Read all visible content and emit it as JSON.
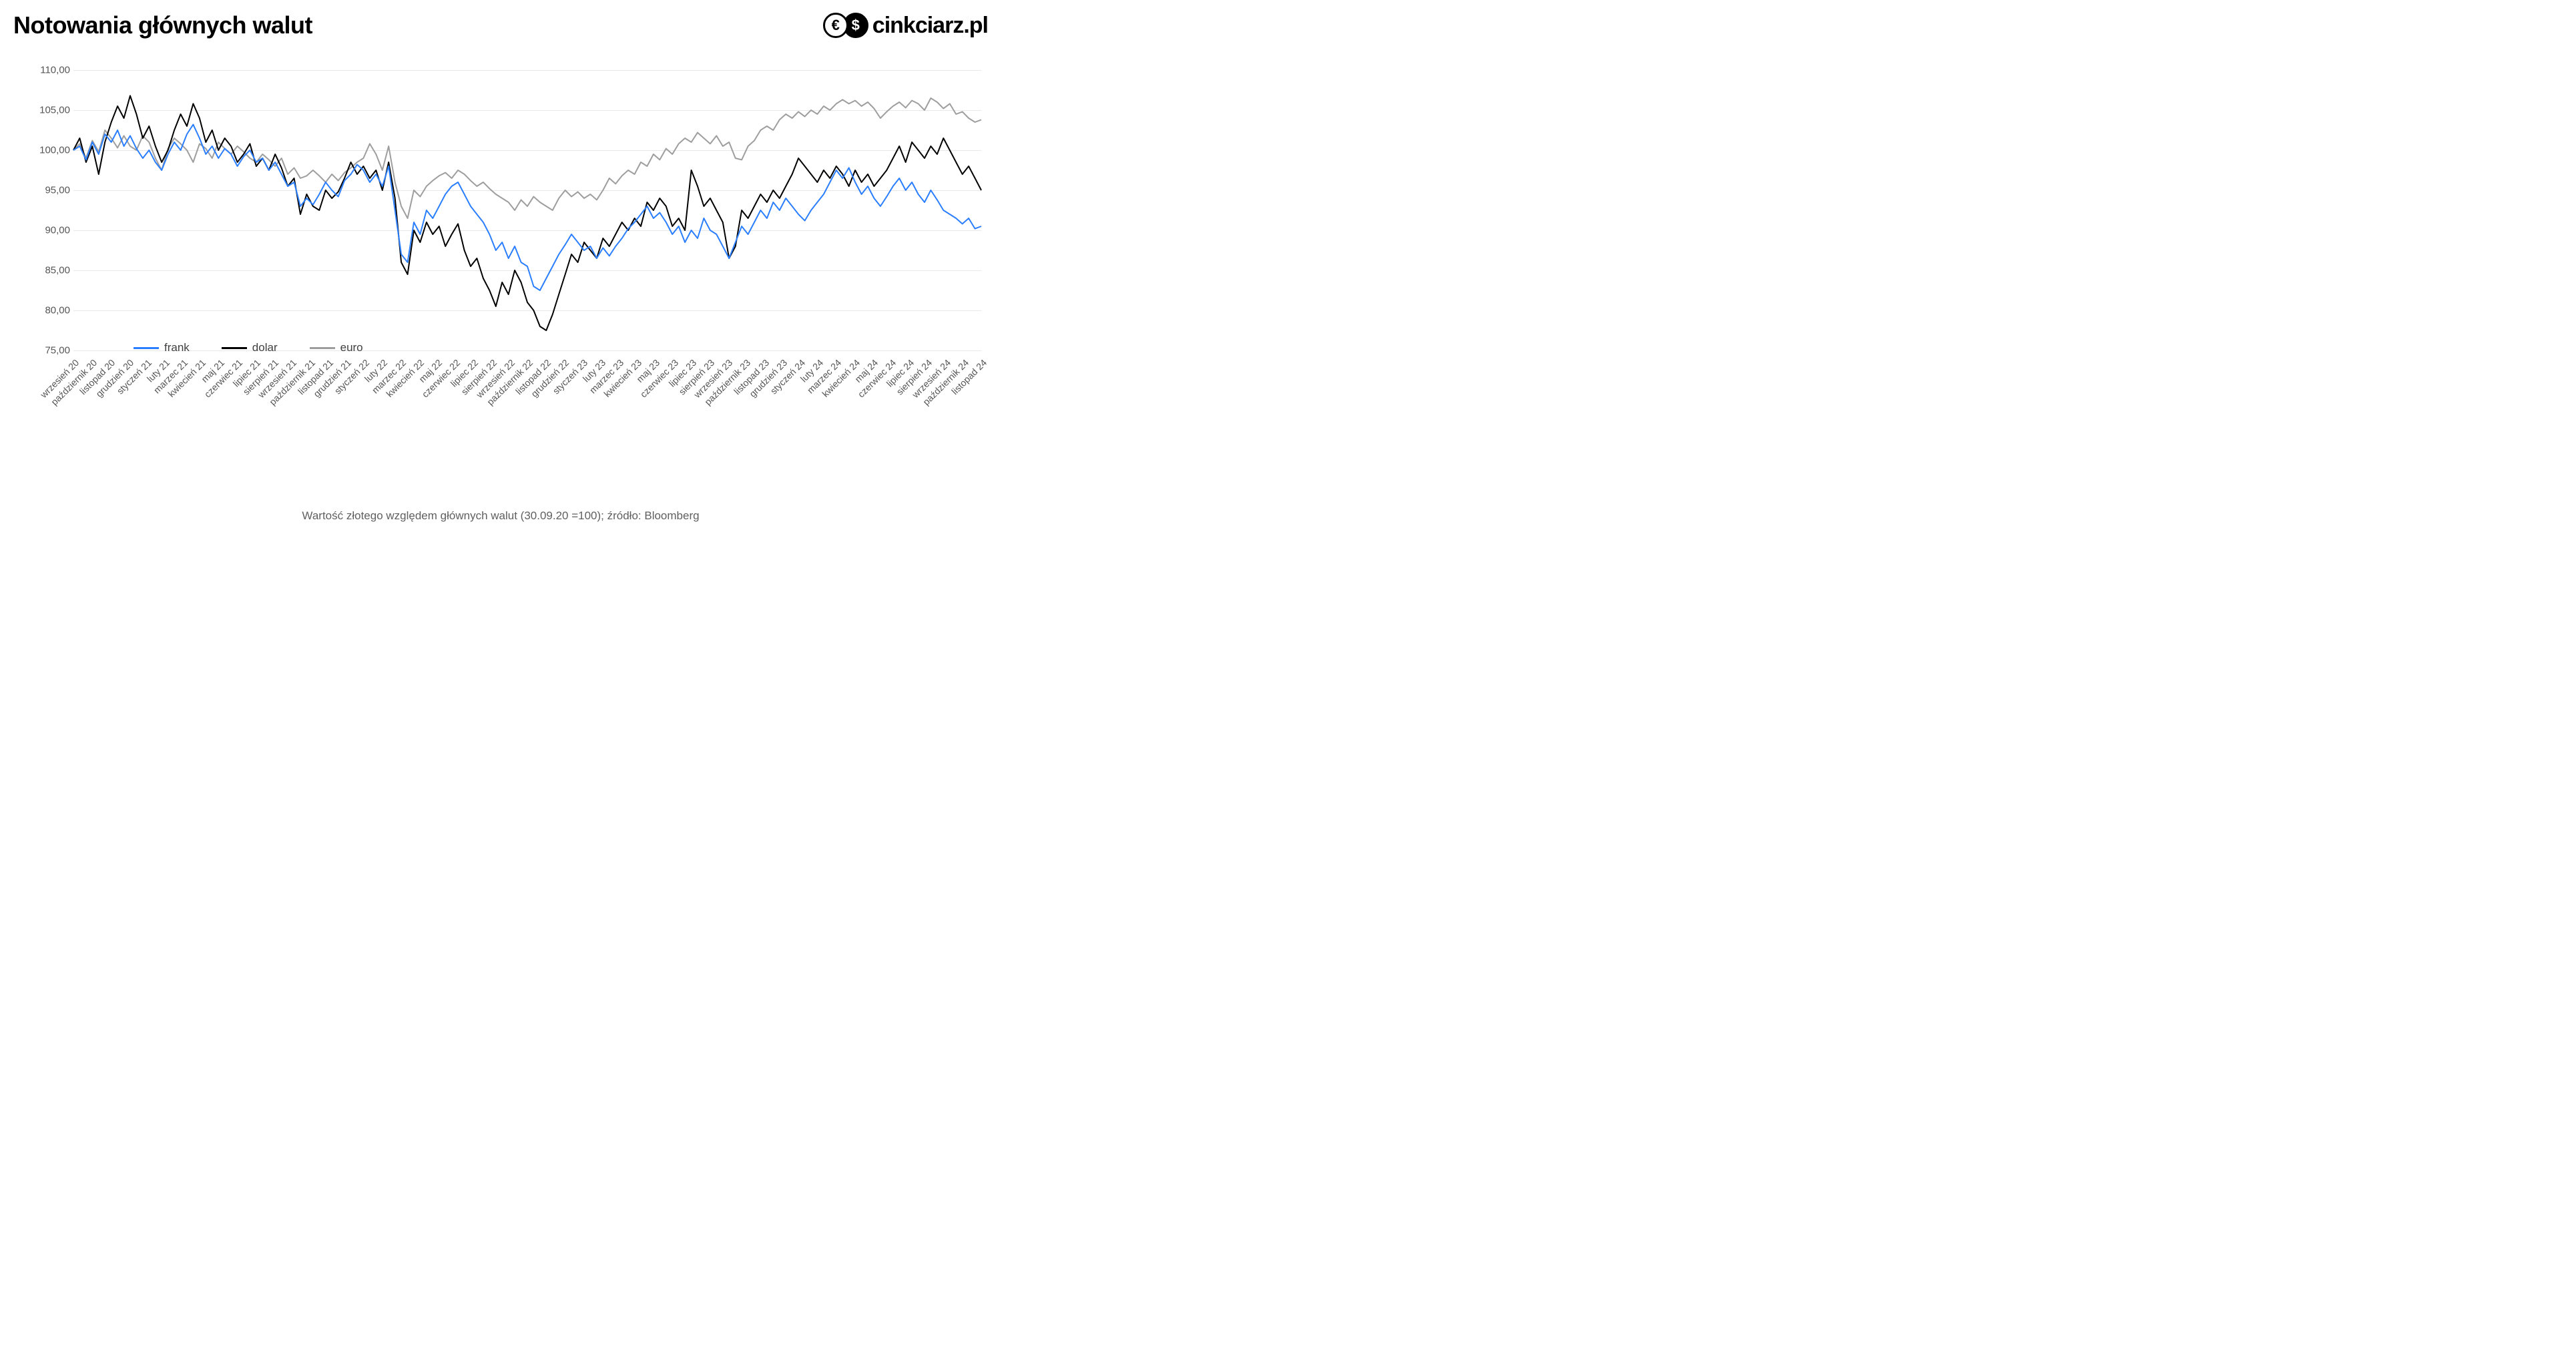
{
  "title": "Notowania głównych walut",
  "logo": {
    "brand_text": "cinkciarz.pl",
    "icon1_glyph": "€",
    "icon2_glyph": "$"
  },
  "caption": "Wartość złotego względem głównych walut (30.09.20 =100); źródło: Bloomberg",
  "chart": {
    "type": "line",
    "background_color": "#ffffff",
    "grid_color": "#e8e8e8",
    "axis_text_color": "#555555",
    "title_fontsize": 36,
    "axis_fontsize": 15,
    "x_label_fontsize": 14,
    "x_label_rotation_deg": -45,
    "line_width": 2,
    "ylim": [
      75,
      110
    ],
    "ytick_step": 5,
    "y_ticks": [
      "75,00",
      "80,00",
      "85,00",
      "90,00",
      "95,00",
      "100,00",
      "105,00",
      "110,00"
    ],
    "x_categories": [
      "wrzesień 20",
      "październik 20",
      "listopad 20",
      "grudzień 20",
      "styczeń 21",
      "luty 21",
      "marzec 21",
      "kwiecień 21",
      "maj 21",
      "czerwiec 21",
      "lipiec 21",
      "sierpień 21",
      "wrzesień 21",
      "październik 21",
      "listopad 21",
      "grudzień 21",
      "styczeń 22",
      "luty 22",
      "marzec 22",
      "kwiecień 22",
      "maj 22",
      "czerwiec 22",
      "lipiec 22",
      "sierpień 22",
      "wrzesień 22",
      "październik 22",
      "listopad 22",
      "grudzień 22",
      "styczeń 23",
      "luty 23",
      "marzec 23",
      "kwiecień 23",
      "maj 23",
      "czerwiec 23",
      "lipiec 23",
      "sierpień 23",
      "wrzesień 23",
      "październik 23",
      "listopad 23",
      "grudzień 23",
      "styczeń 24",
      "luty 24",
      "marzec 24",
      "kwiecień 24",
      "maj 24",
      "czerwiec 24",
      "lipiec 24",
      "sierpień 24",
      "wrzesień 24",
      "październik 24",
      "listopad 24"
    ],
    "legend": {
      "position": "bottom-left-inside",
      "fontsize": 17,
      "items": [
        {
          "label": "frank",
          "color": "#2b7fff"
        },
        {
          "label": "dolar",
          "color": "#000000"
        },
        {
          "label": "euro",
          "color": "#9e9e9e"
        }
      ]
    },
    "series": [
      {
        "name": "euro",
        "color": "#9e9e9e",
        "values": [
          100.0,
          100.8,
          99.0,
          101.2,
          99.8,
          102.5,
          101.5,
          100.3,
          101.8,
          100.5,
          100.0,
          101.8,
          101.0,
          99.0,
          97.5,
          100.2,
          101.5,
          100.8,
          100.0,
          98.5,
          100.8,
          100.2,
          99.0,
          101.0,
          100.2,
          99.5,
          100.5,
          99.8,
          99.0,
          98.5,
          99.5,
          98.8,
          98.0,
          99.0,
          97.0,
          97.8,
          96.5,
          96.8,
          97.5,
          96.8,
          96.0,
          97.0,
          96.2,
          97.2,
          97.8,
          98.5,
          99.0,
          100.8,
          99.5,
          97.5,
          100.5,
          96.0,
          93.0,
          91.5,
          95.0,
          94.2,
          95.5,
          96.2,
          96.8,
          97.2,
          96.5,
          97.5,
          97.0,
          96.2,
          95.5,
          96.0,
          95.2,
          94.5,
          94.0,
          93.5,
          92.5,
          93.8,
          93.0,
          94.2,
          93.5,
          93.0,
          92.5,
          94.0,
          95.0,
          94.2,
          94.8,
          94.0,
          94.5,
          93.8,
          95.0,
          96.5,
          95.8,
          96.8,
          97.5,
          97.0,
          98.5,
          98.0,
          99.5,
          98.8,
          100.2,
          99.5,
          100.8,
          101.5,
          101.0,
          102.2,
          101.5,
          100.8,
          101.8,
          100.5,
          101.0,
          99.0,
          98.8,
          100.5,
          101.2,
          102.5,
          103.0,
          102.5,
          103.8,
          104.5,
          104.0,
          104.8,
          104.2,
          105.0,
          104.5,
          105.5,
          105.0,
          105.8,
          106.3,
          105.8,
          106.2,
          105.5,
          106.0,
          105.2,
          104.0,
          104.8,
          105.5,
          106.0,
          105.3,
          106.2,
          105.8,
          105.0,
          106.5,
          106.0,
          105.2,
          105.8,
          104.5,
          104.8,
          104.0,
          103.5,
          103.8
        ]
      },
      {
        "name": "dolar",
        "color": "#000000",
        "values": [
          100.0,
          101.5,
          98.5,
          100.5,
          97.0,
          101.0,
          103.5,
          105.5,
          104.0,
          106.8,
          104.5,
          101.5,
          103.0,
          100.5,
          98.5,
          100.0,
          102.5,
          104.5,
          103.0,
          105.8,
          104.0,
          101.0,
          102.5,
          100.0,
          101.5,
          100.5,
          98.5,
          99.5,
          100.8,
          98.0,
          99.0,
          97.5,
          99.5,
          97.8,
          95.5,
          96.5,
          92.0,
          94.5,
          93.0,
          92.5,
          95.0,
          94.0,
          94.8,
          96.5,
          98.5,
          97.0,
          98.0,
          96.5,
          97.5,
          95.0,
          98.5,
          94.0,
          86.0,
          84.5,
          90.0,
          88.5,
          91.0,
          89.5,
          90.5,
          88.0,
          89.5,
          90.8,
          87.5,
          85.5,
          86.5,
          84.0,
          82.5,
          80.5,
          83.5,
          82.0,
          85.0,
          83.5,
          81.0,
          80.0,
          78.0,
          77.5,
          79.5,
          82.0,
          84.5,
          87.0,
          86.0,
          88.5,
          87.5,
          86.5,
          89.0,
          88.0,
          89.5,
          91.0,
          90.0,
          91.5,
          90.5,
          93.5,
          92.5,
          94.0,
          93.0,
          90.5,
          91.5,
          90.0,
          97.5,
          95.5,
          93.0,
          94.0,
          92.5,
          91.0,
          86.5,
          88.0,
          92.5,
          91.5,
          93.0,
          94.5,
          93.5,
          95.0,
          94.0,
          95.5,
          97.0,
          99.0,
          98.0,
          97.0,
          96.0,
          97.5,
          96.5,
          98.0,
          97.0,
          95.5,
          97.5,
          96.0,
          97.0,
          95.5,
          96.5,
          97.5,
          99.0,
          100.5,
          98.5,
          101.0,
          100.0,
          99.0,
          100.5,
          99.5,
          101.5,
          100.0,
          98.5,
          97.0,
          98.0,
          96.5,
          95.0
        ]
      },
      {
        "name": "frank",
        "color": "#2b7fff",
        "values": [
          100.0,
          100.5,
          98.8,
          101.0,
          99.5,
          102.0,
          101.0,
          102.5,
          100.5,
          101.8,
          100.2,
          99.0,
          100.0,
          98.5,
          97.5,
          99.5,
          101.0,
          100.0,
          102.0,
          103.2,
          101.5,
          99.5,
          100.5,
          99.0,
          100.2,
          99.5,
          98.0,
          99.2,
          100.0,
          98.5,
          99.0,
          97.5,
          98.5,
          97.0,
          95.5,
          96.0,
          93.0,
          94.0,
          93.2,
          94.5,
          96.0,
          95.0,
          94.2,
          96.2,
          97.0,
          98.2,
          97.5,
          96.0,
          97.0,
          95.5,
          98.0,
          92.5,
          87.0,
          86.0,
          91.0,
          89.5,
          92.5,
          91.5,
          93.0,
          94.5,
          95.5,
          96.0,
          94.5,
          93.0,
          92.0,
          91.0,
          89.5,
          87.5,
          88.5,
          86.5,
          88.0,
          86.0,
          85.5,
          83.0,
          82.5,
          84.0,
          85.5,
          87.0,
          88.2,
          89.5,
          88.5,
          87.5,
          88.0,
          86.5,
          87.8,
          86.8,
          88.0,
          89.0,
          90.2,
          91.0,
          92.0,
          93.0,
          91.5,
          92.2,
          91.0,
          89.5,
          90.5,
          88.5,
          90.0,
          89.0,
          91.5,
          90.0,
          89.5,
          88.0,
          86.5,
          88.5,
          90.5,
          89.5,
          91.0,
          92.5,
          91.5,
          93.5,
          92.5,
          94.0,
          93.0,
          92.0,
          91.2,
          92.5,
          93.5,
          94.5,
          96.0,
          97.5,
          96.5,
          97.8,
          96.0,
          94.5,
          95.5,
          94.0,
          93.0,
          94.2,
          95.5,
          96.5,
          95.0,
          96.0,
          94.5,
          93.5,
          95.0,
          93.8,
          92.5,
          92.0,
          91.5,
          90.8,
          91.5,
          90.2,
          90.5
        ]
      }
    ]
  }
}
